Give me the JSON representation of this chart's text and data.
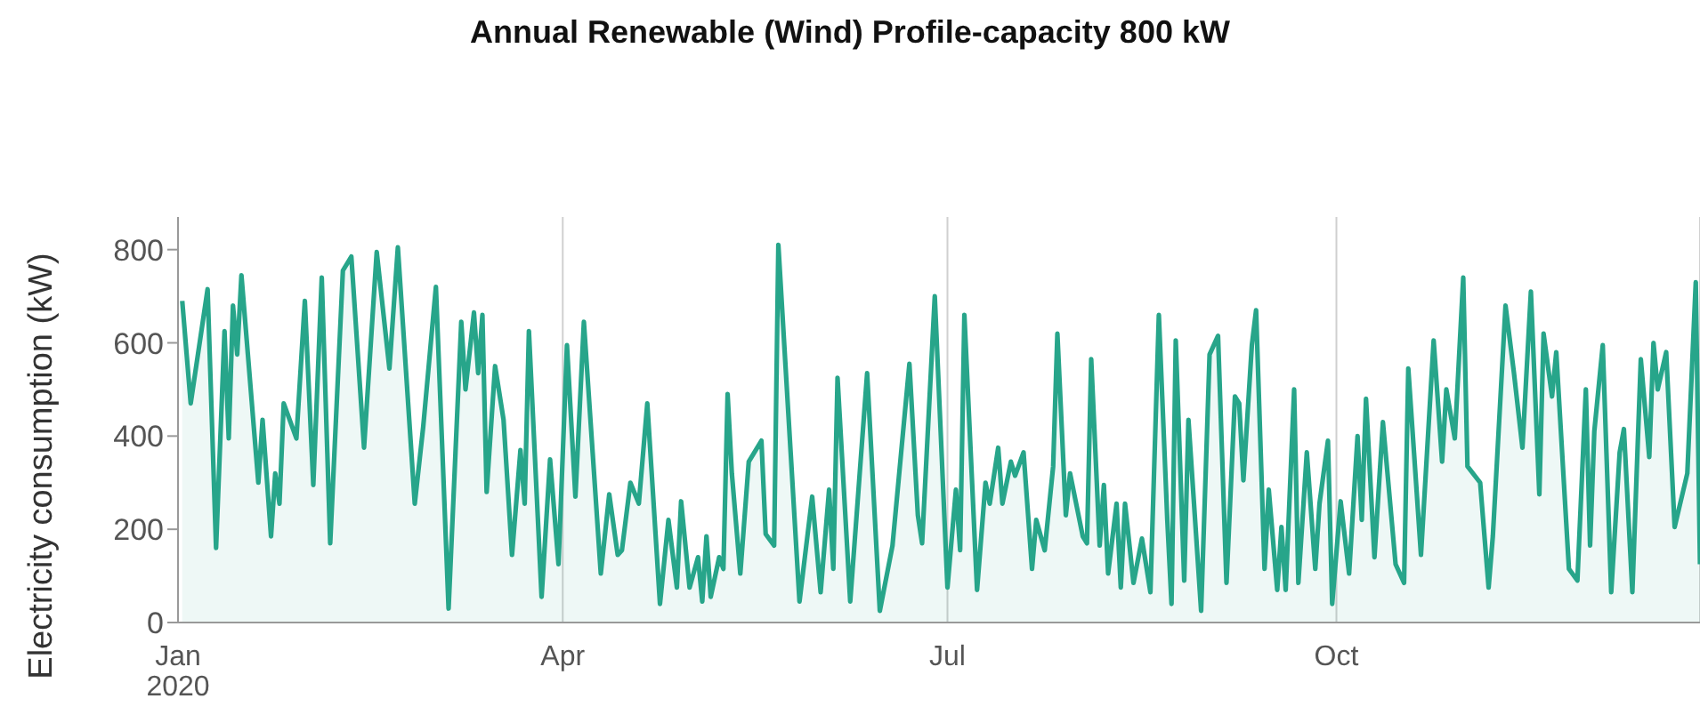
{
  "chart_data": {
    "type": "area",
    "title": "Annual Renewable (Wind) Profile-capacity 800 kW",
    "ylabel": "Electricity consumption (kW)",
    "x": [
      "2020-01-02",
      "2020-01-04",
      "2020-01-08",
      "2020-01-10",
      "2020-01-12",
      "2020-01-13",
      "2020-01-14",
      "2020-01-15",
      "2020-01-16",
      "2020-01-20",
      "2020-01-21",
      "2020-01-23",
      "2020-01-24",
      "2020-01-25",
      "2020-01-26",
      "2020-01-29",
      "2020-01-31",
      "2020-02-02",
      "2020-02-04",
      "2020-02-06",
      "2020-02-09",
      "2020-02-11",
      "2020-02-14",
      "2020-02-17",
      "2020-02-20",
      "2020-02-22",
      "2020-02-26",
      "2020-02-28",
      "2020-03-02",
      "2020-03-05",
      "2020-03-08",
      "2020-03-09",
      "2020-03-11",
      "2020-03-12",
      "2020-03-13",
      "2020-03-14",
      "2020-03-16",
      "2020-03-18",
      "2020-03-20",
      "2020-03-22",
      "2020-03-23",
      "2020-03-24",
      "2020-03-27",
      "2020-03-29",
      "2020-03-31",
      "2020-04-02",
      "2020-04-04",
      "2020-04-06",
      "2020-04-10",
      "2020-04-12",
      "2020-04-14",
      "2020-04-15",
      "2020-04-17",
      "2020-04-19",
      "2020-04-21",
      "2020-04-24",
      "2020-04-26",
      "2020-04-28",
      "2020-04-29",
      "2020-05-01",
      "2020-05-03",
      "2020-05-04",
      "2020-05-05",
      "2020-05-06",
      "2020-05-08",
      "2020-05-09",
      "2020-05-10",
      "2020-05-11",
      "2020-05-13",
      "2020-05-15",
      "2020-05-18",
      "2020-05-19",
      "2020-05-21",
      "2020-05-22",
      "2020-05-27",
      "2020-05-30",
      "2020-06-01",
      "2020-06-03",
      "2020-06-04",
      "2020-06-05",
      "2020-06-08",
      "2020-06-12",
      "2020-06-15",
      "2020-06-18",
      "2020-06-22",
      "2020-06-24",
      "2020-06-25",
      "2020-06-28",
      "2020-07-01",
      "2020-07-03",
      "2020-07-04",
      "2020-07-05",
      "2020-07-08",
      "2020-07-10",
      "2020-07-11",
      "2020-07-13",
      "2020-07-14",
      "2020-07-16",
      "2020-07-17",
      "2020-07-19",
      "2020-07-21",
      "2020-07-22",
      "2020-07-24",
      "2020-07-26",
      "2020-07-27",
      "2020-07-29",
      "2020-07-30",
      "2020-08-02",
      "2020-08-03",
      "2020-08-04",
      "2020-08-06",
      "2020-08-07",
      "2020-08-08",
      "2020-08-10",
      "2020-08-11",
      "2020-08-12",
      "2020-08-14",
      "2020-08-16",
      "2020-08-18",
      "2020-08-20",
      "2020-08-22",
      "2020-08-23",
      "2020-08-24",
      "2020-08-26",
      "2020-08-27",
      "2020-08-30",
      "2020-09-01",
      "2020-09-03",
      "2020-09-05",
      "2020-09-07",
      "2020-09-08",
      "2020-09-09",
      "2020-09-11",
      "2020-09-12",
      "2020-09-14",
      "2020-09-15",
      "2020-09-17",
      "2020-09-18",
      "2020-09-19",
      "2020-09-21",
      "2020-09-22",
      "2020-09-24",
      "2020-09-26",
      "2020-09-27",
      "2020-09-29",
      "2020-09-30",
      "2020-10-02",
      "2020-10-04",
      "2020-10-06",
      "2020-10-07",
      "2020-10-08",
      "2020-10-10",
      "2020-10-12",
      "2020-10-15",
      "2020-10-17",
      "2020-10-18",
      "2020-10-21",
      "2020-10-24",
      "2020-10-26",
      "2020-10-27",
      "2020-10-29",
      "2020-10-31",
      "2020-11-01",
      "2020-11-04",
      "2020-11-06",
      "2020-11-07",
      "2020-11-10",
      "2020-11-12",
      "2020-11-14",
      "2020-11-16",
      "2020-11-18",
      "2020-11-19",
      "2020-11-21",
      "2020-11-22",
      "2020-11-25",
      "2020-11-27",
      "2020-11-29",
      "2020-11-30",
      "2020-12-01",
      "2020-12-03",
      "2020-12-05",
      "2020-12-07",
      "2020-12-08",
      "2020-12-10",
      "2020-12-12",
      "2020-12-14",
      "2020-12-15",
      "2020-12-16",
      "2020-12-18",
      "2020-12-20",
      "2020-12-23",
      "2020-12-25",
      "2020-12-26"
    ],
    "series": [
      {
        "color": "#27a58a",
        "values": [
          690,
          470,
          715,
          160,
          625,
          395,
          680,
          575,
          745,
          300,
          435,
          185,
          320,
          255,
          470,
          395,
          690,
          295,
          740,
          170,
          755,
          785,
          375,
          795,
          545,
          805,
          255,
          420,
          720,
          30,
          645,
          500,
          665,
          535,
          660,
          280,
          550,
          435,
          145,
          370,
          255,
          625,
          55,
          350,
          125,
          595,
          270,
          645,
          105,
          275,
          145,
          155,
          300,
          255,
          470,
          40,
          220,
          75,
          260,
          75,
          140,
          45,
          185,
          55,
          140,
          115,
          490,
          320,
          105,
          345,
          390,
          190,
          165,
          810,
          45,
          270,
          65,
          285,
          115,
          525,
          45,
          535,
          25,
          165,
          555,
          230,
          170,
          700,
          75,
          285,
          155,
          660,
          70,
          300,
          255,
          375,
          255,
          345,
          315,
          365,
          115,
          220,
          155,
          335,
          620,
          230,
          320,
          185,
          170,
          565,
          165,
          295,
          105,
          255,
          75,
          255,
          85,
          180,
          65,
          660,
          220,
          40,
          605,
          90,
          435,
          25,
          575,
          615,
          85,
          485,
          470,
          305,
          595,
          670,
          115,
          285,
          70,
          205,
          70,
          500,
          85,
          365,
          115,
          255,
          390,
          40,
          260,
          105,
          400,
          220,
          480,
          140,
          430,
          125,
          85,
          545,
          145,
          605,
          345,
          500,
          395,
          740,
          335,
          300,
          75,
          185,
          680,
          535,
          375,
          710,
          275,
          620,
          485,
          580,
          115,
          90,
          500,
          165,
          410,
          595,
          65,
          365,
          415,
          65,
          565,
          355,
          600,
          500,
          580,
          205,
          320,
          730,
          125
        ]
      }
    ],
    "xlim": [
      "2020-01-01",
      "2020-12-26"
    ],
    "xticks": [
      {
        "value": "2020-01-01",
        "label": "Jan\n2020"
      },
      {
        "value": "2020-04-01",
        "label": "Apr"
      },
      {
        "value": "2020-07-01",
        "label": "Jul"
      },
      {
        "value": "2020-10-01",
        "label": "Oct"
      }
    ],
    "ylim": [
      0,
      870
    ],
    "yticks": [
      0,
      200,
      400,
      600,
      800
    ],
    "grid": "x"
  }
}
